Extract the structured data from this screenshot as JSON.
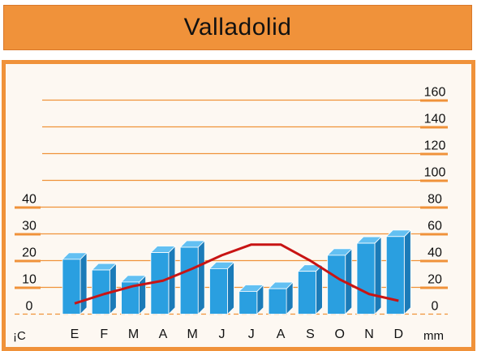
{
  "title": "Valladolid",
  "colors": {
    "frame": "#f0923a",
    "bar_front": "#2a9fe0",
    "bar_side": "#1b7bb8",
    "bar_top": "#63c0f2",
    "line": "#c81414",
    "grid": "#f0923a"
  },
  "chart_data": {
    "type": "bar",
    "title": "Valladolid",
    "categories": [
      "E",
      "F",
      "M",
      "A",
      "M",
      "J",
      "J",
      "A",
      "S",
      "O",
      "N",
      "D"
    ],
    "series": [
      {
        "values": [
          41,
          33,
          24,
          46,
          50,
          34,
          17,
          19,
          32,
          44,
          53,
          58
        ],
        "axis": "right",
        "kind": "bar"
      },
      {
        "values": [
          4,
          7.5,
          10.5,
          12.5,
          17,
          22,
          26,
          26,
          20,
          13,
          7.5,
          5
        ],
        "axis": "left",
        "kind": "line"
      }
    ],
    "y_left": {
      "unit": "¡C",
      "ticks": [
        0,
        10,
        20,
        30,
        40
      ],
      "range": [
        0,
        40
      ]
    },
    "y_right": {
      "unit": "mm",
      "ticks": [
        0,
        20,
        40,
        60,
        80,
        100,
        120,
        140,
        160
      ],
      "range": [
        0,
        160
      ]
    },
    "grid": true
  }
}
